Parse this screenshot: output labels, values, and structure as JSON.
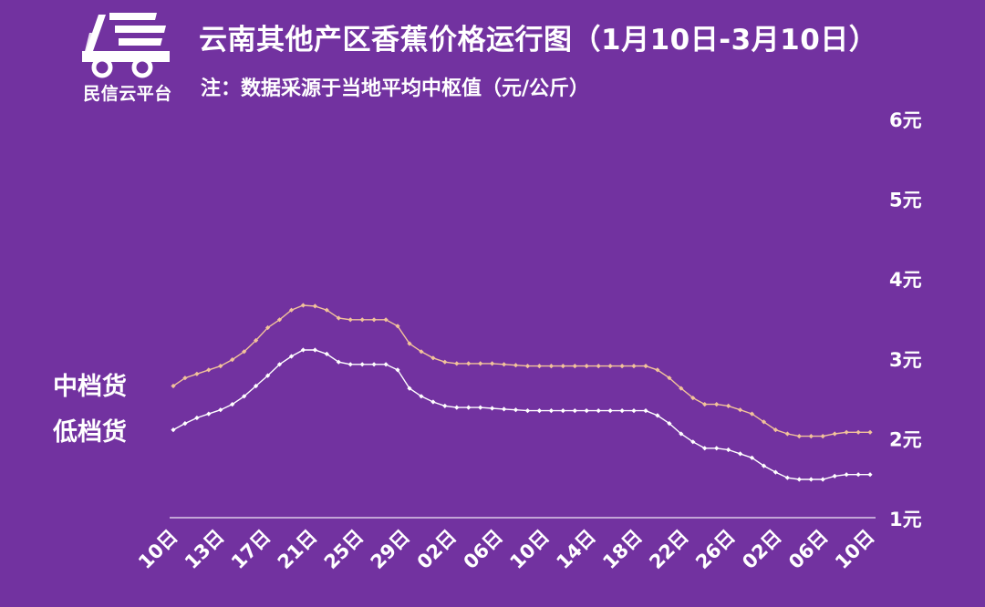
{
  "logo": {
    "name": "truck-logo-icon",
    "text": "民信云平台"
  },
  "title": "云南其他产区香蕉价格运行图（1月10日-3月10日）",
  "subtitle": "注：数据采源于当地平均中枢值（元/公斤）",
  "legend": {
    "mid": "中档货",
    "low": "低档货"
  },
  "colors": {
    "background": "#7232a0",
    "mid_line": "#f2c39a",
    "low_line": "#ffffff",
    "baseline": "#ffffff"
  },
  "chart_data": {
    "type": "line",
    "title": "云南其他产区香蕉价格运行图（1月10日-3月10日）",
    "xlabel": "",
    "ylabel": "",
    "ylim": [
      1,
      6
    ],
    "yticks": [
      "1元",
      "2元",
      "3元",
      "4元",
      "5元",
      "6元"
    ],
    "x_ticks": [
      "10日",
      "13日",
      "17日",
      "21日",
      "25日",
      "29日",
      "02日",
      "06日",
      "10日",
      "14日",
      "18日",
      "22日",
      "26日",
      "02日",
      "06日",
      "10日"
    ],
    "series": [
      {
        "name": "中档货",
        "values": [
          2.65,
          2.75,
          2.8,
          2.85,
          2.9,
          2.98,
          3.08,
          3.22,
          3.38,
          3.48,
          3.6,
          3.66,
          3.65,
          3.6,
          3.5,
          3.48,
          3.48,
          3.48,
          3.48,
          3.4,
          3.18,
          3.08,
          3.0,
          2.95,
          2.93,
          2.93,
          2.93,
          2.93,
          2.92,
          2.91,
          2.9,
          2.9,
          2.9,
          2.9,
          2.9,
          2.9,
          2.9,
          2.9,
          2.9,
          2.9,
          2.9,
          2.85,
          2.75,
          2.62,
          2.5,
          2.42,
          2.42,
          2.4,
          2.35,
          2.3,
          2.2,
          2.1,
          2.05,
          2.02,
          2.02,
          2.02,
          2.05,
          2.07,
          2.07,
          2.07
        ]
      },
      {
        "name": "低档货",
        "values": [
          2.1,
          2.18,
          2.25,
          2.3,
          2.35,
          2.42,
          2.52,
          2.65,
          2.78,
          2.92,
          3.02,
          3.1,
          3.1,
          3.05,
          2.95,
          2.92,
          2.92,
          2.92,
          2.92,
          2.85,
          2.62,
          2.52,
          2.45,
          2.4,
          2.38,
          2.38,
          2.38,
          2.37,
          2.36,
          2.35,
          2.34,
          2.34,
          2.34,
          2.34,
          2.34,
          2.34,
          2.34,
          2.34,
          2.34,
          2.34,
          2.34,
          2.28,
          2.18,
          2.05,
          1.95,
          1.87,
          1.87,
          1.85,
          1.8,
          1.75,
          1.65,
          1.57,
          1.5,
          1.48,
          1.48,
          1.48,
          1.52,
          1.54,
          1.54,
          1.54
        ]
      }
    ]
  }
}
